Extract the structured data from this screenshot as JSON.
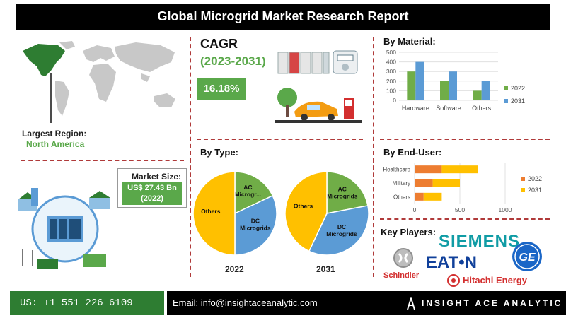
{
  "header": {
    "title": "Global Microgrid Market Research Report"
  },
  "cagr": {
    "label": "CAGR",
    "years": "(2023-2031)",
    "value": "16.18%"
  },
  "region": {
    "label": "Largest Region:",
    "value": "North America"
  },
  "market_size": {
    "label": "Market Size:",
    "line1": "US$ 27.43 Bn",
    "line2": "(2022)"
  },
  "sections": {
    "by_material": "By Material:",
    "by_type": "By Type:",
    "by_end_user": "By End-User:",
    "key_players": "Key Players:"
  },
  "key_players": {
    "siemens": "SIEMENS",
    "eaton": "EAT•N",
    "schindler": "Schindler",
    "hitachi": "Hitachi Energy",
    "ge": "GE"
  },
  "footer": {
    "phone": "US: +1 551 226 6109",
    "email": "Email: info@insightaceanalytic.com",
    "brand": "INSIGHT ACE ANALYTIC"
  },
  "colors": {
    "green": "#5aa84a",
    "blue": "#5b9bd5",
    "orange": "#ed7d31",
    "yellow": "#ffc000",
    "dark_green": "#70ad47"
  },
  "chart_data": [
    {
      "type": "bar",
      "title": "By Material:",
      "categories": [
        "Hardware",
        "Software",
        "Others"
      ],
      "series": [
        {
          "name": "2022",
          "values": [
            300,
            200,
            100
          ]
        },
        {
          "name": "2031",
          "values": [
            400,
            300,
            200
          ]
        }
      ],
      "ylim": [
        0,
        500
      ],
      "yticks": [
        0,
        100,
        200,
        300,
        400,
        500
      ],
      "legend": "right"
    },
    {
      "type": "pie",
      "title": "2022",
      "labels": [
        "AC Microgr...",
        "DC Microgrids",
        "Others"
      ],
      "values": [
        18,
        32,
        50
      ]
    },
    {
      "type": "pie",
      "title": "2031",
      "labels": [
        "AC Microgrids",
        "DC Microgrids",
        "Others"
      ],
      "values": [
        22,
        35,
        43
      ]
    },
    {
      "type": "bar",
      "orientation": "horizontal",
      "stacked": true,
      "title": "By End-User:",
      "categories": [
        "Healthcare",
        "Military",
        "Others"
      ],
      "series": [
        {
          "name": "2022",
          "values": [
            300,
            200,
            100
          ]
        },
        {
          "name": "2031",
          "values": [
            400,
            300,
            200
          ]
        }
      ],
      "xlim": [
        0,
        1000
      ],
      "xticks": [
        0,
        500,
        1000
      ],
      "legend": "right"
    }
  ]
}
